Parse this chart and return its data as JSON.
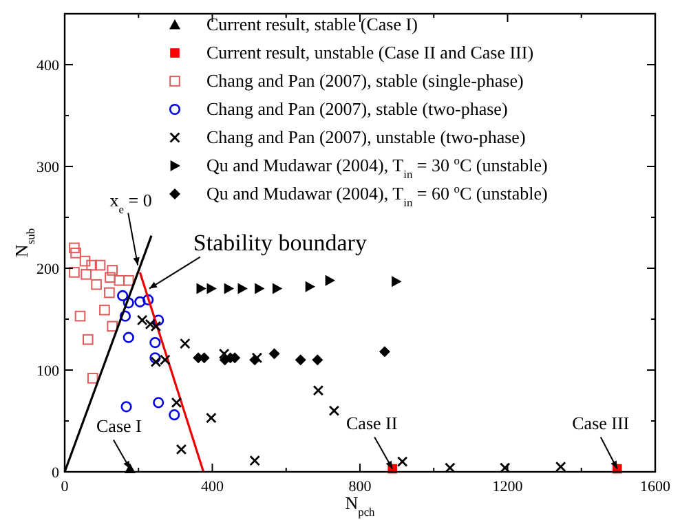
{
  "chart_data": {
    "type": "scatter",
    "xlabel": "N$_{pch}$",
    "ylabel": "N$_{sub}$",
    "xlim": [
      0,
      1600
    ],
    "ylim": [
      0,
      450
    ],
    "xticks": [
      0,
      {
        "value": 200,
        "label": null
      },
      400,
      {
        "value": 600,
        "label": null
      },
      800,
      {
        "value": 1000,
        "label": null
      },
      1200,
      {
        "value": 1400,
        "label": null
      },
      1600
    ],
    "yticks": [
      0,
      {
        "value": 50,
        "label": null
      },
      100,
      {
        "value": 150,
        "label": null
      },
      200,
      {
        "value": 250,
        "label": null
      },
      300,
      {
        "value": 350,
        "label": null
      },
      400,
      {
        "value": 450,
        "label": null
      }
    ],
    "grid": false,
    "legend": "top",
    "series": [
      {
        "name": "Current result, stable (Case I)",
        "color": "#000000",
        "marker": "triangle",
        "x": [
          177
        ],
        "values": [
          3
        ]
      },
      {
        "name": "Current result, unstable (Case II and Case III)",
        "color": "#ff0000",
        "marker": "square",
        "x": [
          888,
          1497
        ],
        "values": [
          3,
          3
        ]
      },
      {
        "name": "Chang and Pan (2007), stable (single-phase)",
        "color": "#e05a5a",
        "marker": "square-open",
        "x": [
          26,
          30,
          26,
          55,
          58,
          73,
          96,
          86,
          129,
          123,
          148,
          173,
          121,
          108,
          42,
          129,
          63,
          76
        ],
        "values": [
          220,
          215,
          196,
          207,
          194,
          203,
          203,
          184,
          198,
          191,
          188,
          188,
          176,
          159,
          153,
          143,
          130,
          92
        ]
      },
      {
        "name": "Chang and Pan (2007), stable (two-phase)",
        "color": "#0000e0",
        "marker": "circle-open",
        "x": [
          157,
          173,
          204,
          226,
          164,
          254,
          173,
          245,
          245,
          167,
          254,
          297
        ],
        "values": [
          173,
          166,
          167,
          169,
          153,
          149,
          132,
          127,
          112,
          64,
          68,
          56
        ]
      },
      {
        "name": "Chang and Pan (2007), unstable (two-phase)",
        "color": "#000000",
        "marker": "cross",
        "x": [
          210,
          232,
          247,
          326,
          247,
          272,
          432,
          521,
          303,
          397,
          316,
          515,
          687,
          730,
          915,
          1044,
          1193,
          1344
        ],
        "values": [
          149,
          145,
          143,
          126,
          108,
          110,
          116,
          112,
          68,
          53,
          22,
          11,
          80,
          60,
          10,
          4,
          4,
          5
        ]
      },
      {
        "name": "Qu and Mudawar (2004), T$_{in}$ = 30 $^{o}$C (unstable)",
        "color": "#000000",
        "marker": "triangle-right",
        "x": [
          369,
          397,
          444,
          481,
          527,
          575,
          664,
          718,
          898
        ],
        "values": [
          180,
          180,
          180,
          180,
          180,
          180,
          182,
          188,
          187
        ]
      },
      {
        "name": "Qu and Mudawar (2004), T$_{in}$ = 60 $^{o}$C (unstable)",
        "color": "#000000",
        "marker": "diamond",
        "x": [
          362,
          378,
          434,
          449,
          461,
          515,
          568,
          639,
          685,
          867
        ],
        "values": [
          112,
          112,
          110,
          112,
          112,
          110,
          116,
          110,
          110,
          118
        ]
      },
      {
        "type": "line",
        "color": "#000000",
        "marker": "none",
        "line_style": "solid",
        "x": [
          0,
          235
        ],
        "values": [
          0,
          232
        ]
      },
      {
        "type": "line",
        "color": "#ee0000",
        "marker": "none",
        "line_style": "solid",
        "x": [
          204,
          376
        ],
        "values": [
          196,
          0
        ]
      }
    ],
    "annotations": [
      {
        "text": "Case I",
        "x": 177,
        "y": 3
      },
      {
        "text": "Case II",
        "x": 888,
        "y": 3
      },
      {
        "text": "Case III",
        "x": 1497,
        "y": 3
      },
      {
        "text": "x$_{e}$ = 0",
        "x": 198,
        "y": 203
      },
      {
        "text": "Stability boundary",
        "x": 229,
        "y": 180
      }
    ]
  }
}
